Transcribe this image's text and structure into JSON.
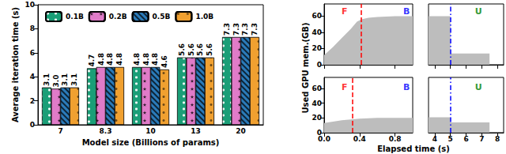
{
  "chart_data": [
    {
      "type": "bar",
      "xlabel": "Model size (Billions of params)",
      "ylabel": "Average iteration time (s)",
      "categories": [
        "7",
        "8.3",
        "10",
        "13",
        "20"
      ],
      "series": [
        {
          "name": "0.1B",
          "color": "#1a9e77",
          "values": [
            3.1,
            4.7,
            4.8,
            5.6,
            7.3
          ]
        },
        {
          "name": "0.2B",
          "color": "#e07bc8",
          "values": [
            3.0,
            4.8,
            4.8,
            5.6,
            7.3
          ],
          "value_labels": [
            "3.0",
            "4.8",
            "4.8",
            "5.6",
            "7.3"
          ]
        },
        {
          "name": "0.5B",
          "color": "#2b7bba",
          "values": [
            3.1,
            4.8,
            4.8,
            5.6,
            7.3
          ]
        },
        {
          "name": "1.0B",
          "color": "#f0a030",
          "values": [
            3.1,
            4.8,
            4.6,
            5.6,
            7.3
          ]
        }
      ],
      "ylim": [
        0,
        10
      ],
      "yticks": [
        0,
        2,
        4,
        6,
        8,
        10
      ],
      "data_labels": true,
      "legend": "upper left",
      "grid": false
    },
    {
      "type": "area",
      "xlabel": "Elapsed time (s)",
      "ylabel": "Used GPU mem.(GB)",
      "color": "#bdbdbd",
      "ylim": [
        0,
        75
      ],
      "yticks": [
        0,
        20,
        40,
        60
      ],
      "panels": [
        {
          "segments": [
            {
              "xlim": [
                0,
                1.0
              ],
              "xticks": [
                {
                  "value": 0,
                  "label": "0.0"
                },
                0.4,
                0.8
              ],
              "tick_labels": "y",
              "x": [
                0,
                0.1,
                0.2,
                0.3,
                0.37,
                0.42,
                0.5,
                0.6,
                0.8,
                1.0
              ],
              "values": [
                12,
                22,
                33,
                44,
                53,
                56,
                58,
                59,
                60,
                60
              ],
              "annotations": [
                {
                  "text": "F",
                  "x": 0.23,
                  "y": 66,
                  "color": "#ff0000"
                },
                {
                  "text": "B",
                  "x": 0.93,
                  "y": 66,
                  "color": "#0000ff"
                }
              ],
              "vlines": [
                {
                  "x": 0.42,
                  "color": "#ff0000",
                  "line_style": "dashed"
                }
              ]
            },
            {
              "xlim": [
                3.6,
                8.4
              ],
              "xticks": [
                4,
                5,
                6,
                7,
                8
              ],
              "tick_labels": false,
              "x": [
                3.6,
                5.0,
                5.0,
                7.5
              ],
              "values": [
                60,
                60,
                14,
                14
              ],
              "annotations": [
                {
                  "text": "U",
                  "x": 6.8,
                  "y": 66,
                  "color": "#008000"
                }
              ],
              "vlines": [
                {
                  "x": 5.0,
                  "color": "#0000ff",
                  "line_style": "dashdot"
                }
              ]
            }
          ]
        },
        {
          "segments": [
            {
              "xlim": [
                0,
                1.0
              ],
              "xticks": [
                {
                  "value": 0,
                  "label": "0.0"
                },
                0.4,
                0.8
              ],
              "tick_labels": true,
              "x": [
                0,
                0.1,
                0.2,
                0.3,
                0.4,
                0.6,
                0.8,
                1.0
              ],
              "values": [
                13,
                15,
                17,
                18,
                19,
                20,
                20,
                20
              ],
              "annotations": [
                {
                  "text": "F",
                  "x": 0.23,
                  "y": 62,
                  "color": "#ff0000"
                },
                {
                  "text": "B",
                  "x": 0.93,
                  "y": 62,
                  "color": "#0000ff"
                }
              ],
              "vlines": [
                {
                  "x": 0.32,
                  "color": "#ff0000",
                  "line_style": "dashed"
                }
              ]
            },
            {
              "xlim": [
                3.6,
                8.4
              ],
              "xticks": [
                4,
                5,
                6,
                7,
                8
              ],
              "tick_labels": "x",
              "x": [
                3.6,
                5.0,
                5.0,
                7.5
              ],
              "values": [
                21,
                21,
                14,
                14
              ],
              "annotations": [
                {
                  "text": "U",
                  "x": 6.8,
                  "y": 62,
                  "color": "#008000"
                }
              ],
              "vlines": [
                {
                  "x": 5.0,
                  "color": "#0000ff",
                  "line_style": "dashdot"
                }
              ]
            }
          ]
        }
      ]
    }
  ]
}
